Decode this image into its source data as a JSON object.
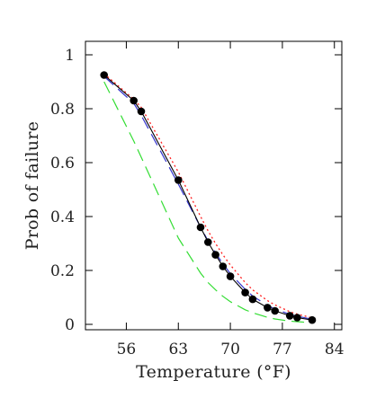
{
  "chart_data": {
    "type": "line",
    "title": "",
    "xlabel": "Temperature (°F)",
    "ylabel": "Prob of failure",
    "xlim": [
      50.5,
      85
    ],
    "ylim": [
      -0.02,
      1.05
    ],
    "xticks": [
      56,
      63,
      70,
      77,
      84
    ],
    "yticks": [
      0,
      0.2,
      0.4,
      0.6,
      0.8,
      1
    ],
    "ytick_labels": [
      "0",
      "0.2",
      "0.4",
      "0.6",
      "0.8",
      "1"
    ],
    "grid": false,
    "legend": "none",
    "series": [
      {
        "style": "solid-with-markers",
        "color": "#000000",
        "x": [
          53,
          57,
          58,
          63,
          66,
          67,
          68,
          69,
          70,
          72,
          73,
          75,
          76,
          78,
          79,
          81
        ],
        "y": [
          0.925,
          0.83,
          0.79,
          0.535,
          0.36,
          0.305,
          0.258,
          0.215,
          0.178,
          0.118,
          0.093,
          0.062,
          0.05,
          0.032,
          0.025,
          0.016
        ]
      },
      {
        "style": "long-dash",
        "color": "#3333cc",
        "x": [
          53,
          57,
          58,
          63,
          66,
          67,
          68,
          69,
          70,
          72,
          73,
          75,
          76,
          78,
          79,
          81
        ],
        "y": [
          0.92,
          0.82,
          0.775,
          0.52,
          0.36,
          0.31,
          0.265,
          0.225,
          0.188,
          0.13,
          0.105,
          0.07,
          0.057,
          0.037,
          0.03,
          0.019
        ]
      },
      {
        "style": "dotted",
        "color": "#ff2020",
        "x": [
          53,
          57,
          58,
          63,
          66,
          67,
          68,
          69,
          70,
          72,
          73,
          75,
          76,
          78,
          79,
          81
        ],
        "y": [
          0.93,
          0.835,
          0.805,
          0.565,
          0.4,
          0.347,
          0.3,
          0.258,
          0.22,
          0.155,
          0.128,
          0.088,
          0.072,
          0.047,
          0.038,
          0.024
        ]
      },
      {
        "style": "long-dash",
        "color": "#33dd33",
        "x": [
          53,
          57,
          58,
          63,
          66,
          67,
          68,
          69,
          70,
          72,
          73,
          75,
          76,
          78,
          79,
          81
        ],
        "y": [
          0.9,
          0.68,
          0.62,
          0.32,
          0.19,
          0.155,
          0.128,
          0.104,
          0.084,
          0.054,
          0.043,
          0.026,
          0.02,
          0.012,
          0.01,
          0.006
        ]
      }
    ]
  }
}
